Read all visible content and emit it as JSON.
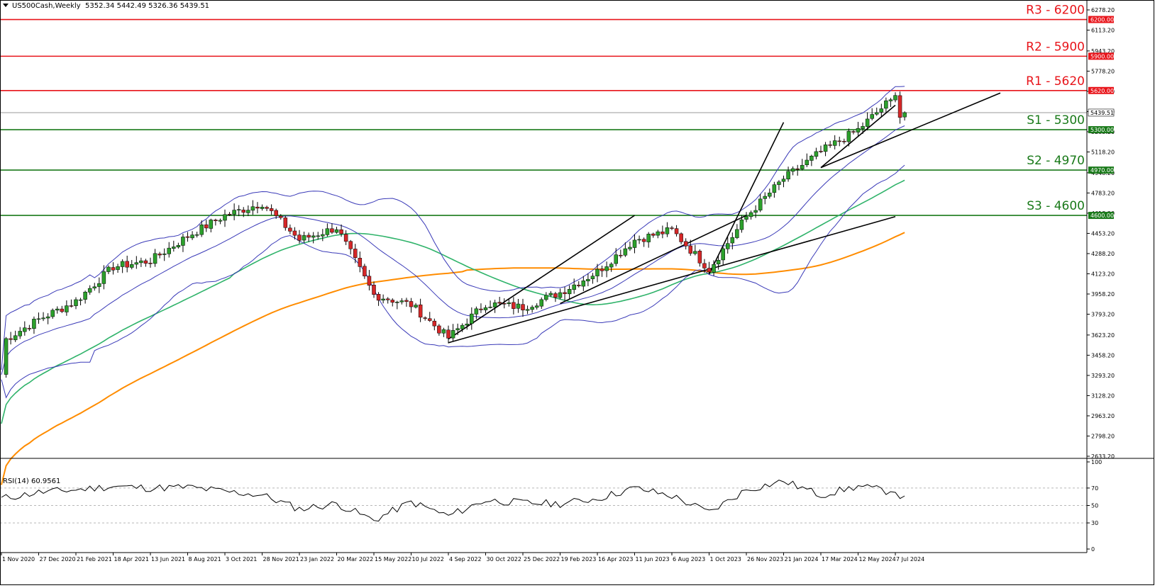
{
  "header": {
    "symbol": "US500Cash,Weekly",
    "open": "5352.34",
    "high": "5442.49",
    "low": "5326.36",
    "close": "5439.51"
  },
  "rsi_header": {
    "label": "RSI(14)",
    "value": "60.9561"
  },
  "colors": {
    "up_candle": "#2ca02c",
    "down_candle": "#d62728",
    "resistance": "#e8141a",
    "support": "#1a7a1a",
    "bollinger": "#3a3ab8",
    "ma_green": "#2fb36a",
    "ma_orange": "#ff8c00",
    "trendline": "#000000",
    "rsi_line": "#000000"
  },
  "chart_data": [
    {
      "type": "candlestick",
      "title": "US500Cash,Weekly",
      "ylim": [
        2633.2,
        6278.2
      ],
      "y_ticks": [
        2633.2,
        2798.2,
        2963.2,
        3128.2,
        3293.2,
        3458.2,
        3623.2,
        3793.2,
        3958.2,
        4123.2,
        4288.2,
        4453.2,
        4618.2,
        4783.2,
        4948.2,
        5118.2,
        5283.2,
        5448.2,
        5613.2,
        5778.2,
        5943.2,
        6113.2,
        6278.2
      ],
      "y_tick_labels": [
        "2633.20",
        "2798.20",
        "2963.20",
        "3128.20",
        "3293.20",
        "3458.20",
        "3623.20",
        "3793.20",
        "3958.20",
        "4123.20",
        "4288.20",
        "4453.20",
        "4618.20",
        "4783.20",
        "4948.20",
        "5118.20",
        "5283.20",
        "5448.20",
        "5613.20",
        "5778.20",
        "5943.20",
        "6113.20",
        "6278.20"
      ],
      "x_ticks": [
        "1 Nov 2020",
        "27 Dec 2020",
        "21 Feb 2021",
        "18 Apr 2021",
        "13 Jun 2021",
        "8 Aug 2021",
        "3 Oct 2021",
        "28 Nov 2021",
        "23 Jan 2022",
        "20 Mar 2022",
        "15 May 2022",
        "10 Jul 2022",
        "4 Sep 2022",
        "30 Oct 2022",
        "25 Dec 2022",
        "19 Feb 2023",
        "16 Apr 2023",
        "11 Jun 2023",
        "6 Aug 2023",
        "1 Oct 2023",
        "26 Nov 2023",
        "21 Jan 2024",
        "17 Mar 2024",
        "12 May 2024",
        "7 Jul 2024"
      ],
      "current_price": 5439.51,
      "current_price_label": "5439.51",
      "levels": [
        {
          "name": "R3 - 6200",
          "value": 6200,
          "tag": "6200.00",
          "kind": "resistance"
        },
        {
          "name": "R2 - 5900",
          "value": 5900,
          "tag": "5900.00",
          "kind": "resistance"
        },
        {
          "name": "R1 - 5620",
          "value": 5620,
          "tag": "5620.00",
          "kind": "resistance"
        },
        {
          "name": "S1 - 5300",
          "value": 5300,
          "tag": "5300.00",
          "kind": "support"
        },
        {
          "name": "S2 - 4970",
          "value": 4970,
          "tag": "4970.00",
          "kind": "support"
        },
        {
          "name": "S3 - 4600",
          "value": 4600,
          "tag": "4600.00",
          "kind": "support"
        }
      ],
      "price_anchors": [
        [
          "1 Nov 2020",
          3300
        ],
        [
          "8 Nov 2020",
          3590
        ],
        [
          "27 Dec 2020",
          3750
        ],
        [
          "21 Feb 2021",
          3900
        ],
        [
          "18 Apr 2021",
          4180
        ],
        [
          "13 Jun 2021",
          4230
        ],
        [
          "8 Aug 2021",
          4430
        ],
        [
          "3 Oct 2021",
          4600
        ],
        [
          "28 Nov 2021",
          4700
        ],
        [
          "23 Jan 2022",
          4400
        ],
        [
          "20 Mar 2022",
          4500
        ],
        [
          "15 May 2022",
          3950
        ],
        [
          "10 Jul 2022",
          3870
        ],
        [
          "4 Sep 2022",
          3600
        ],
        [
          "30 Oct 2022",
          3880
        ],
        [
          "25 Dec 2022",
          3850
        ],
        [
          "19 Feb 2023",
          3970
        ],
        [
          "16 Apr 2023",
          4140
        ],
        [
          "11 Jun 2023",
          4400
        ],
        [
          "6 Aug 2023",
          4480
        ],
        [
          "1 Oct 2023",
          4160
        ],
        [
          "26 Nov 2023",
          4590
        ],
        [
          "21 Jan 2024",
          4900
        ],
        [
          "17 Mar 2024",
          5120
        ],
        [
          "12 May 2024",
          5300
        ],
        [
          "7 Jul 2024",
          5580
        ]
      ],
      "trendlines": [
        {
          "from": [
            "4 Sep 2022",
            3590
          ],
          "to": [
            "11 Jun 2023",
            4600
          ]
        },
        {
          "from": [
            "4 Sep 2022",
            3560
          ],
          "to": [
            "7 Jul 2024",
            4590
          ]
        },
        {
          "from": [
            "19 Feb 2023",
            3880
          ],
          "to": [
            "26 Nov 2023",
            4600
          ]
        },
        {
          "from": [
            "1 Oct 2023",
            4120
          ],
          "to": [
            "21 Jan 2024",
            5360
          ]
        },
        {
          "from": [
            "17 Mar 2024",
            4990
          ],
          "to": [
            "7 Jul 2024",
            5500
          ]
        }
      ]
    },
    {
      "type": "line",
      "title": "RSI(14) 60.9561",
      "ylim": [
        0,
        100
      ],
      "y_ticks": [
        0,
        30,
        50,
        70,
        100
      ],
      "y_tick_labels": [
        "0",
        "30",
        "50",
        "70",
        "100"
      ],
      "levels": [
        30,
        50,
        70
      ],
      "last_value": 60.9561,
      "anchors": [
        [
          "1 Nov 2020",
          58
        ],
        [
          "27 Dec 2020",
          65
        ],
        [
          "21 Feb 2021",
          68
        ],
        [
          "18 Apr 2021",
          72
        ],
        [
          "13 Jun 2021",
          70
        ],
        [
          "8 Aug 2021",
          71
        ],
        [
          "3 Oct 2021",
          66
        ],
        [
          "28 Nov 2021",
          62
        ],
        [
          "23 Jan 2022",
          46
        ],
        [
          "20 Mar 2022",
          52
        ],
        [
          "15 May 2022",
          33
        ],
        [
          "10 Jul 2022",
          54
        ],
        [
          "4 Sep 2022",
          38
        ],
        [
          "30 Oct 2022",
          56
        ],
        [
          "25 Dec 2022",
          53
        ],
        [
          "19 Feb 2023",
          52
        ],
        [
          "16 Apr 2023",
          58
        ],
        [
          "11 Jun 2023",
          70
        ],
        [
          "6 Aug 2023",
          61
        ],
        [
          "1 Oct 2023",
          42
        ],
        [
          "26 Nov 2023",
          68
        ],
        [
          "21 Jan 2024",
          78
        ],
        [
          "17 Mar 2024",
          62
        ],
        [
          "12 May 2024",
          72
        ],
        [
          "7 Jul 2024",
          65
        ]
      ]
    }
  ]
}
